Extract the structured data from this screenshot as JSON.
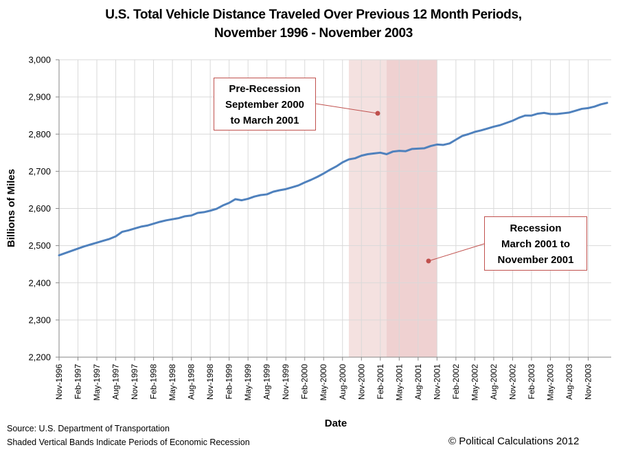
{
  "chart_data": {
    "type": "line",
    "title": "U.S. Total Vehicle Distance Traveled Over Previous 12 Month Periods,",
    "subtitle": "November 1996 - November 2003",
    "xlabel": "Date",
    "ylabel": "Billions of Miles",
    "ylim": [
      2200,
      3000
    ],
    "yticks": [
      2200,
      2300,
      2400,
      2500,
      2600,
      2700,
      2800,
      2900,
      3000
    ],
    "ytick_labels": [
      "2,200",
      "2,300",
      "2,400",
      "2,500",
      "2,600",
      "2,700",
      "2,800",
      "2,900",
      "3,000"
    ],
    "x_start": "Nov-1996",
    "x_end": "Nov-2003",
    "xtick_labels": [
      "Nov-1996",
      "Feb-1997",
      "May-1997",
      "Aug-1997",
      "Nov-1997",
      "Feb-1998",
      "May-1998",
      "Aug-1998",
      "Nov-1998",
      "Feb-1999",
      "May-1999",
      "Aug-1999",
      "Nov-1999",
      "Feb-2000",
      "May-2000",
      "Aug-2000",
      "Nov-2000",
      "Feb-2001",
      "May-2001",
      "Aug-2001",
      "Nov-2001",
      "Feb-2002",
      "May-2002",
      "Aug-2002",
      "Nov-2002",
      "Feb-2003",
      "May-2003",
      "Aug-2003",
      "Nov-2003"
    ],
    "xtick_interval_months": 3,
    "grid": true,
    "legend": "none",
    "series": [
      {
        "name": "Total Vehicle Distance Traveled (12-month)",
        "color": "#4f81bd",
        "values": [
          2474,
          2480,
          2486,
          2492,
          2498,
          2503,
          2508,
          2513,
          2518,
          2525,
          2537,
          2541,
          2546,
          2551,
          2554,
          2559,
          2564,
          2568,
          2571,
          2574,
          2579,
          2581,
          2588,
          2590,
          2594,
          2599,
          2608,
          2615,
          2625,
          2622,
          2626,
          2632,
          2636,
          2638,
          2645,
          2649,
          2652,
          2657,
          2662,
          2670,
          2677,
          2685,
          2694,
          2704,
          2713,
          2724,
          2732,
          2735,
          2742,
          2746,
          2748,
          2750,
          2746,
          2753,
          2755,
          2754,
          2760,
          2761,
          2762,
          2768,
          2772,
          2771,
          2775,
          2785,
          2795,
          2800,
          2806,
          2810,
          2815,
          2820,
          2824,
          2830,
          2836,
          2844,
          2850,
          2850,
          2855,
          2857,
          2854,
          2854,
          2856,
          2858,
          2863,
          2868,
          2870,
          2874,
          2880,
          2884
        ]
      }
    ],
    "shaded_bands": [
      {
        "label": "Pre-Recession",
        "start": "Sep-2000",
        "end": "Mar-2001",
        "color": "#f2dcdb"
      },
      {
        "label": "Recession",
        "start": "Mar-2001",
        "end": "Nov-2001",
        "color": "#e6b9b8"
      }
    ],
    "annotations": [
      {
        "lines": [
          "Pre-Recession",
          "September 2000",
          "to March 2001"
        ],
        "points_to": "pre-recession band"
      },
      {
        "lines": [
          "Recession",
          "March 2001 to",
          "November 2001"
        ],
        "points_to": "recession band"
      }
    ]
  },
  "footer": {
    "source": "Source: U.S. Department of Transportation",
    "note": "Shaded Vertical Bands Indicate Periods of Economic Recession",
    "copyright": "© Political Calculations 2012"
  }
}
